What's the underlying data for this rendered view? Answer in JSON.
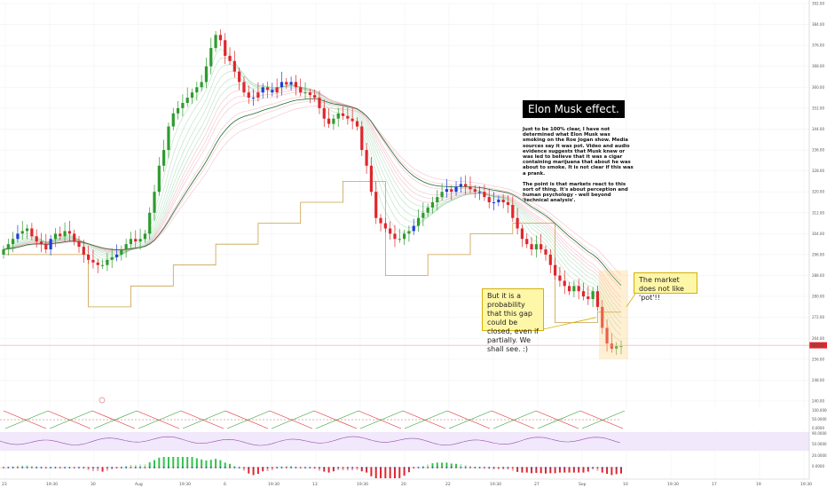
{
  "chart_data": {
    "type": "candlestick",
    "note_title": "Elon Musk effect.",
    "note_paragraphs": [
      "Just to be 100% clear, I have not determined what Elon Musk was smoking on the Roe Jogan show. Media sources say it was pot. Video and audio evidence suggests that Musk knew or was led to believe that it was a cigar containing marijuana that about he was about to smoke. It is not clear if this was a prank.",
      "The point is that markets react to this sort of thing. It's about perception and human psychology - well beyond 'technical analysis'."
    ],
    "callout_gap": "But it is a probability that this gap could be closed, even if partially. We shall see. :)",
    "callout_pot": "The market does not like 'pot'!!",
    "price_label": "261.33",
    "ylim": [
      240,
      392
    ],
    "y_ticks": [
      "392.00",
      "384.00",
      "376.00",
      "368.00",
      "360.00",
      "352.00",
      "344.00",
      "336.00",
      "328.00",
      "320.00",
      "312.00",
      "304.00",
      "296.00",
      "288.00",
      "280.00",
      "272.00",
      "264.00",
      "256.00",
      "248.00",
      "240.00"
    ],
    "x_ticks": [
      "23",
      "19:30",
      "30",
      "Aug",
      "19:30",
      "6",
      "19:30",
      "13",
      "19:30",
      "20",
      "22",
      "19:30",
      "27",
      "Sep",
      "10",
      "19:30",
      "17",
      "19",
      "19:30"
    ],
    "osc1_ticks": [
      "100.0000",
      "50.0000",
      "0.0000"
    ],
    "osc2_ticks": [
      "90.0000",
      "50.0000"
    ],
    "osc3_ticks": [
      "20.0000",
      "0.0000"
    ],
    "closes": [
      298,
      300,
      302,
      304,
      305,
      306,
      303,
      301,
      300,
      298,
      302,
      304,
      303,
      305,
      304,
      301,
      299,
      296,
      294,
      293,
      292,
      292,
      294,
      295,
      296,
      298,
      300,
      302,
      301,
      302,
      304,
      312,
      320,
      330,
      336,
      345,
      350,
      352,
      354,
      356,
      358,
      360,
      362,
      368,
      375,
      380,
      378,
      372,
      370,
      366,
      362,
      358,
      356,
      356,
      358,
      360,
      359,
      358,
      360,
      362,
      361,
      362,
      360,
      358,
      358,
      357,
      356,
      352,
      348,
      346,
      348,
      350,
      349,
      348,
      347,
      345,
      336,
      330,
      320,
      310,
      308,
      306,
      304,
      302,
      302,
      304,
      305,
      307,
      310,
      312,
      314,
      316,
      318,
      320,
      321,
      320,
      322,
      323,
      322,
      321,
      320,
      320,
      318,
      316,
      316,
      317,
      316,
      315,
      310,
      306,
      302,
      300,
      298,
      300,
      298,
      296,
      292,
      288,
      286,
      284,
      282,
      284,
      282,
      280,
      279,
      282,
      276,
      268,
      262,
      260,
      261,
      261
    ]
  }
}
